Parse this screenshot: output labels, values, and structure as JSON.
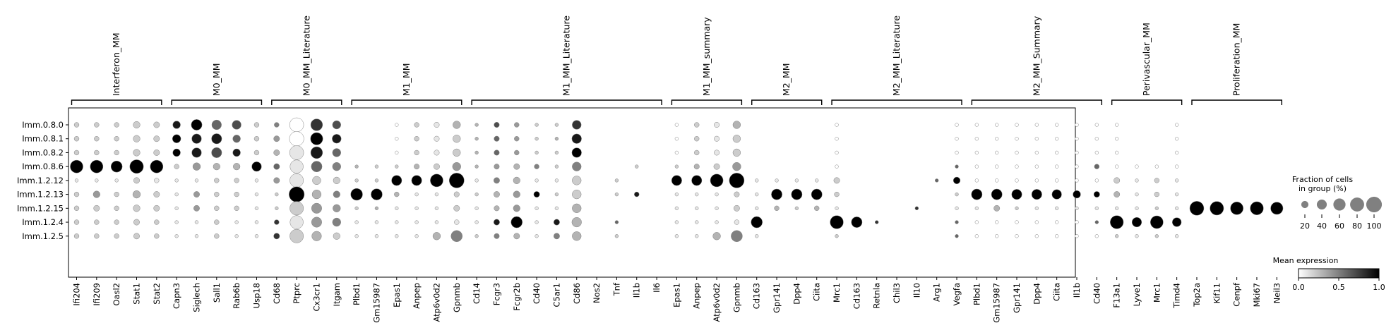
{
  "chart_data": {
    "type": "dotplot",
    "title": "",
    "groups": [
      "Imm.0.8.0",
      "Imm.0.8.1",
      "Imm.0.8.2",
      "Imm.0.8.6",
      "Imm.1.2.12",
      "Imm.1.2.13",
      "Imm.1.2.15",
      "Imm.1.2.4",
      "Imm.1.2.5"
    ],
    "gene_sets": [
      {
        "name": "Interferon_MM",
        "genes": [
          "Ifi204",
          "Ifi209",
          "Oasl2",
          "Stat1",
          "Stat2"
        ]
      },
      {
        "name": "M0_MM",
        "genes": [
          "Capn3",
          "Siglech",
          "Sall1",
          "Rab6b",
          "Usp18"
        ]
      },
      {
        "name": "M0_MM_Literature",
        "genes": [
          "Cd68",
          "Ptprc",
          "Cx3cr1",
          "Itgam"
        ]
      },
      {
        "name": "M1_MM",
        "genes": [
          "Plbd1",
          "Gm15987",
          "Epas1",
          "Anpep",
          "Atp6v0d2",
          "Gpnmb"
        ]
      },
      {
        "name": "M1_MM_Literature",
        "genes": [
          "Cd14",
          "Fcgr3",
          "Fcgr2b",
          "Cd40",
          "C5ar1",
          "Cd86",
          "Nos2",
          "Tnf",
          "Il1b",
          "Il6"
        ]
      },
      {
        "name": "M1_MM_summary",
        "genes": [
          "Epas1",
          "Anpep",
          "Atp6v0d2",
          "Gpnmb"
        ]
      },
      {
        "name": "M2_MM",
        "genes": [
          "Cd163",
          "Gpr141",
          "Dpp4",
          "Ciita"
        ]
      },
      {
        "name": "M2_MM_Literature",
        "genes": [
          "Mrc1",
          "Cd163",
          "Retnla",
          "Chil3",
          "Il10",
          "Arg1",
          "Vegfa"
        ]
      },
      {
        "name": "M2_MM_Summary",
        "genes": [
          "Plbd1",
          "Gm15987",
          "Gpr141",
          "Dpp4",
          "Ciita",
          "Il1b",
          "Cd40"
        ]
      },
      {
        "name": "Perivascular_MM",
        "genes": [
          "F13a1",
          "Lyve1",
          "Mrc1",
          "Timd4"
        ]
      },
      {
        "name": "Proliferation_MM",
        "genes": [
          "Top2a",
          "Kif11",
          "Cenpf",
          "Mki67",
          "Neil3"
        ]
      }
    ],
    "fraction_pct": [
      [
        10,
        10,
        10,
        20,
        15,
        25,
        50,
        40,
        35,
        10,
        10,
        85,
        60,
        30,
        0,
        0,
        5,
        10,
        12,
        25,
        5,
        12,
        10,
        5,
        5,
        35,
        0,
        0,
        0,
        0,
        5,
        10,
        12,
        25,
        0,
        0,
        0,
        0,
        5,
        0,
        0,
        0,
        0,
        0,
        5,
        5,
        5,
        5,
        5,
        5,
        5,
        5,
        5,
        0,
        0,
        5,
        0,
        0,
        0,
        0,
        0
      ],
      [
        10,
        10,
        10,
        20,
        15,
        30,
        40,
        45,
        25,
        10,
        15,
        90,
        65,
        35,
        0,
        0,
        5,
        10,
        12,
        25,
        5,
        12,
        10,
        5,
        5,
        40,
        0,
        0,
        0,
        0,
        5,
        10,
        12,
        25,
        0,
        0,
        0,
        0,
        5,
        0,
        0,
        0,
        0,
        0,
        5,
        5,
        5,
        5,
        5,
        5,
        5,
        5,
        5,
        0,
        0,
        5,
        0,
        0,
        0,
        0,
        0
      ],
      [
        10,
        10,
        10,
        20,
        15,
        25,
        40,
        45,
        25,
        10,
        15,
        85,
        60,
        30,
        0,
        0,
        5,
        10,
        12,
        25,
        5,
        12,
        10,
        5,
        5,
        40,
        0,
        0,
        0,
        0,
        5,
        10,
        12,
        25,
        0,
        0,
        0,
        0,
        5,
        0,
        0,
        0,
        0,
        0,
        5,
        5,
        5,
        5,
        5,
        5,
        5,
        5,
        5,
        0,
        0,
        5,
        0,
        0,
        0,
        0,
        0
      ],
      [
        70,
        70,
        55,
        80,
        70,
        10,
        25,
        20,
        20,
        40,
        15,
        75,
        50,
        30,
        5,
        5,
        5,
        12,
        15,
        30,
        5,
        12,
        15,
        10,
        5,
        35,
        0,
        0,
        5,
        0,
        5,
        12,
        15,
        30,
        0,
        0,
        0,
        0,
        5,
        0,
        0,
        0,
        0,
        0,
        5,
        5,
        5,
        5,
        5,
        5,
        5,
        10,
        5,
        5,
        5,
        5,
        0,
        0,
        0,
        0,
        0
      ],
      [
        5,
        5,
        5,
        15,
        10,
        5,
        5,
        10,
        10,
        5,
        15,
        80,
        30,
        20,
        5,
        5,
        45,
        45,
        70,
        95,
        5,
        15,
        20,
        5,
        5,
        35,
        0,
        5,
        0,
        0,
        45,
        45,
        70,
        95,
        5,
        5,
        5,
        5,
        15,
        0,
        0,
        0,
        0,
        5,
        20,
        5,
        5,
        5,
        5,
        5,
        5,
        5,
        15,
        5,
        10,
        5,
        0,
        0,
        0,
        0,
        0
      ],
      [
        10,
        20,
        10,
        25,
        15,
        5,
        15,
        10,
        10,
        5,
        5,
        100,
        35,
        20,
        60,
        55,
        10,
        5,
        5,
        12,
        5,
        15,
        20,
        15,
        5,
        35,
        0,
        5,
        10,
        0,
        5,
        5,
        5,
        12,
        5,
        50,
        50,
        50,
        10,
        0,
        0,
        0,
        0,
        0,
        5,
        50,
        50,
        45,
        45,
        40,
        25,
        15,
        15,
        5,
        10,
        5,
        0,
        0,
        0,
        0,
        0
      ],
      [
        10,
        15,
        10,
        20,
        15,
        5,
        15,
        10,
        10,
        5,
        5,
        80,
        45,
        25,
        5,
        5,
        5,
        5,
        5,
        15,
        5,
        12,
        20,
        5,
        5,
        35,
        0,
        0,
        0,
        0,
        5,
        5,
        5,
        15,
        5,
        10,
        5,
        10,
        5,
        0,
        0,
        0,
        5,
        0,
        5,
        5,
        15,
        5,
        5,
        5,
        5,
        5,
        5,
        5,
        5,
        5,
        85,
        80,
        70,
        75,
        65
      ],
      [
        10,
        10,
        10,
        15,
        10,
        5,
        5,
        10,
        5,
        5,
        10,
        75,
        45,
        30,
        5,
        5,
        5,
        5,
        5,
        10,
        5,
        15,
        55,
        5,
        15,
        40,
        0,
        5,
        0,
        0,
        5,
        5,
        5,
        10,
        55,
        0,
        0,
        0,
        75,
        50,
        5,
        0,
        0,
        0,
        5,
        5,
        5,
        5,
        5,
        5,
        5,
        5,
        75,
        40,
        70,
        35,
        0,
        0,
        0,
        0,
        0
      ],
      [
        10,
        10,
        10,
        15,
        10,
        5,
        5,
        10,
        5,
        5,
        15,
        80,
        40,
        20,
        5,
        5,
        5,
        5,
        25,
        55,
        5,
        12,
        15,
        5,
        15,
        35,
        0,
        5,
        0,
        0,
        5,
        5,
        25,
        55,
        5,
        0,
        0,
        0,
        5,
        0,
        0,
        0,
        0,
        0,
        5,
        5,
        5,
        5,
        5,
        5,
        5,
        5,
        5,
        5,
        5,
        5,
        0,
        0,
        0,
        0,
        0
      ]
    ],
    "mean_expression": [
      [
        0.2,
        0.2,
        0.2,
        0.2,
        0.2,
        0.9,
        1.0,
        0.6,
        0.7,
        0.2,
        0.5,
        0.0,
        0.8,
        0.7,
        0,
        0,
        0,
        0.2,
        0.1,
        0.3,
        0.3,
        0.7,
        0.4,
        0.2,
        0.2,
        0.8,
        0,
        0,
        0,
        0,
        0,
        0.2,
        0.1,
        0.3,
        0,
        0,
        0,
        0,
        0,
        0,
        0,
        0,
        0,
        0,
        0,
        0,
        0,
        0,
        0,
        0,
        0,
        0,
        0,
        0,
        0,
        0,
        0,
        0,
        0,
        0,
        0
      ],
      [
        0.2,
        0.2,
        0.2,
        0.2,
        0.2,
        1.0,
        0.9,
        0.9,
        0.6,
        0.2,
        0.4,
        0.0,
        1.0,
        0.9,
        0,
        0,
        0,
        0.2,
        0.1,
        0.2,
        0.3,
        0.6,
        0.4,
        0.2,
        0.3,
        0.9,
        0,
        0,
        0,
        0,
        0,
        0.2,
        0.1,
        0.2,
        0,
        0,
        0,
        0,
        0,
        0,
        0,
        0,
        0,
        0,
        0,
        0,
        0,
        0,
        0,
        0,
        0,
        0,
        0,
        0,
        0,
        0,
        0,
        0,
        0,
        0,
        0
      ],
      [
        0.2,
        0.2,
        0.2,
        0.2,
        0.2,
        1.0,
        0.9,
        0.7,
        0.9,
        0.2,
        0.3,
        0.1,
        0.9,
        0.6,
        0,
        0,
        0,
        0.2,
        0.1,
        0.2,
        0.3,
        0.6,
        0.4,
        0.2,
        0.2,
        1.0,
        0,
        0,
        0,
        0,
        0,
        0.2,
        0.1,
        0.2,
        0,
        0,
        0,
        0,
        0,
        0,
        0,
        0,
        0,
        0,
        0,
        0,
        0,
        0,
        0,
        0,
        0,
        0,
        0,
        0,
        0,
        0,
        0,
        0,
        0,
        0,
        0
      ],
      [
        1.0,
        1.0,
        1.0,
        1.0,
        1.0,
        0.2,
        0.4,
        0.3,
        0.3,
        1.0,
        0.6,
        0.1,
        0.6,
        0.5,
        0.3,
        0.2,
        0.2,
        0.3,
        0.2,
        0.4,
        0.3,
        0.4,
        0.3,
        0.5,
        0.2,
        0.5,
        0,
        0,
        0.2,
        0,
        0.2,
        0.3,
        0.2,
        0.4,
        0,
        0,
        0,
        0,
        0,
        0,
        0,
        0,
        0,
        0,
        0.6,
        0,
        0,
        0,
        0,
        0,
        0,
        0.6,
        0,
        0,
        0,
        0,
        0,
        0,
        0,
        0,
        0
      ],
      [
        0.1,
        0.1,
        0.1,
        0.2,
        0.1,
        0.1,
        0.1,
        0.2,
        0.2,
        0.1,
        0.4,
        0.1,
        0.2,
        0.2,
        0.2,
        0.2,
        1.0,
        1.0,
        1.0,
        1.0,
        0.1,
        0.5,
        0.3,
        0.1,
        0.1,
        0.2,
        0,
        0.2,
        0,
        0,
        1.0,
        1.0,
        1.0,
        1.0,
        0.1,
        0.1,
        0.1,
        0.1,
        0.2,
        0,
        0,
        0,
        0,
        0.6,
        1.0,
        0,
        0,
        0,
        0,
        0,
        0,
        0,
        0.2,
        0.1,
        0.2,
        0.1,
        0,
        0,
        0,
        0,
        0
      ],
      [
        0.2,
        0.4,
        0.2,
        0.3,
        0.2,
        0.1,
        0.4,
        0.2,
        0.2,
        0.1,
        0.2,
        1.0,
        0.3,
        0.5,
        1.0,
        1.0,
        0.3,
        0.1,
        0.1,
        0.2,
        0.2,
        0.3,
        0.4,
        1.0,
        0.2,
        0.2,
        0,
        0.2,
        0.9,
        0,
        0.1,
        0.1,
        0.1,
        0.2,
        0.1,
        1.0,
        1.0,
        1.0,
        0.2,
        0,
        0,
        0,
        0,
        0,
        0.2,
        1.0,
        1.0,
        1.0,
        1.0,
        1.0,
        1.0,
        1.0,
        0.3,
        0.1,
        0.2,
        0.1,
        0,
        0,
        0,
        0,
        0
      ],
      [
        0.2,
        0.2,
        0.2,
        0.2,
        0.2,
        0.1,
        0.4,
        0.2,
        0.2,
        0.1,
        0.2,
        0.2,
        0.4,
        0.4,
        0.2,
        0.3,
        0.1,
        0.1,
        0.1,
        0.2,
        0.1,
        0.3,
        0.4,
        0.1,
        0.1,
        0.3,
        0,
        0,
        0,
        0,
        0.1,
        0.1,
        0.1,
        0.2,
        0.1,
        0.3,
        0.2,
        0.3,
        0.1,
        0,
        0,
        0,
        0.8,
        0,
        0.1,
        0.1,
        0.3,
        0.2,
        0.1,
        0.1,
        0.1,
        0.1,
        0.1,
        0.1,
        0.2,
        0.1,
        1.0,
        1.0,
        1.0,
        1.0,
        1.0
      ],
      [
        0.2,
        0.2,
        0.2,
        0.2,
        0.2,
        0.1,
        0.1,
        0.2,
        0.1,
        0.1,
        0.8,
        0.1,
        0.4,
        0.5,
        0.1,
        0.1,
        0.1,
        0.1,
        0.1,
        0.1,
        0.1,
        0.9,
        1.0,
        0.1,
        0.9,
        0.3,
        0,
        0.6,
        0,
        0,
        0.1,
        0.1,
        0.1,
        0.1,
        1.0,
        0,
        0,
        0,
        1.0,
        1.0,
        0.8,
        0,
        0,
        0,
        0.6,
        0,
        0,
        0,
        0,
        0,
        0,
        0.6,
        1.0,
        1.0,
        1.0,
        1.0,
        0,
        0,
        0,
        0,
        0
      ],
      [
        0.2,
        0.2,
        0.2,
        0.2,
        0.2,
        0.1,
        0.1,
        0.2,
        0.1,
        0.1,
        0.8,
        0.2,
        0.3,
        0.2,
        0.1,
        0.1,
        0.1,
        0.1,
        0.3,
        0.5,
        0.2,
        0.5,
        0.3,
        0.1,
        0.5,
        0.3,
        0,
        0.2,
        0,
        0,
        0.1,
        0.1,
        0.3,
        0.5,
        0.1,
        0,
        0,
        0,
        0.2,
        0,
        0,
        0,
        0,
        0,
        0.6,
        0,
        0,
        0,
        0,
        0,
        0,
        0,
        0.2,
        0.1,
        0.2,
        0.1,
        0,
        0,
        0,
        0,
        0
      ]
    ],
    "size_legend": {
      "title": "Fraction of cells\nin group (%)",
      "ticks": [
        "20",
        "40",
        "60",
        "80",
        "100"
      ],
      "values": [
        20,
        40,
        60,
        80,
        100
      ]
    },
    "color_legend": {
      "title": "Mean expression",
      "ticks": [
        "0.0",
        "0.5",
        "1.0"
      ],
      "range": [
        0.0,
        1.0
      ]
    },
    "colors": {
      "low": "#ffffff",
      "high": "#000000",
      "edge": "#7f7f7f"
    }
  }
}
